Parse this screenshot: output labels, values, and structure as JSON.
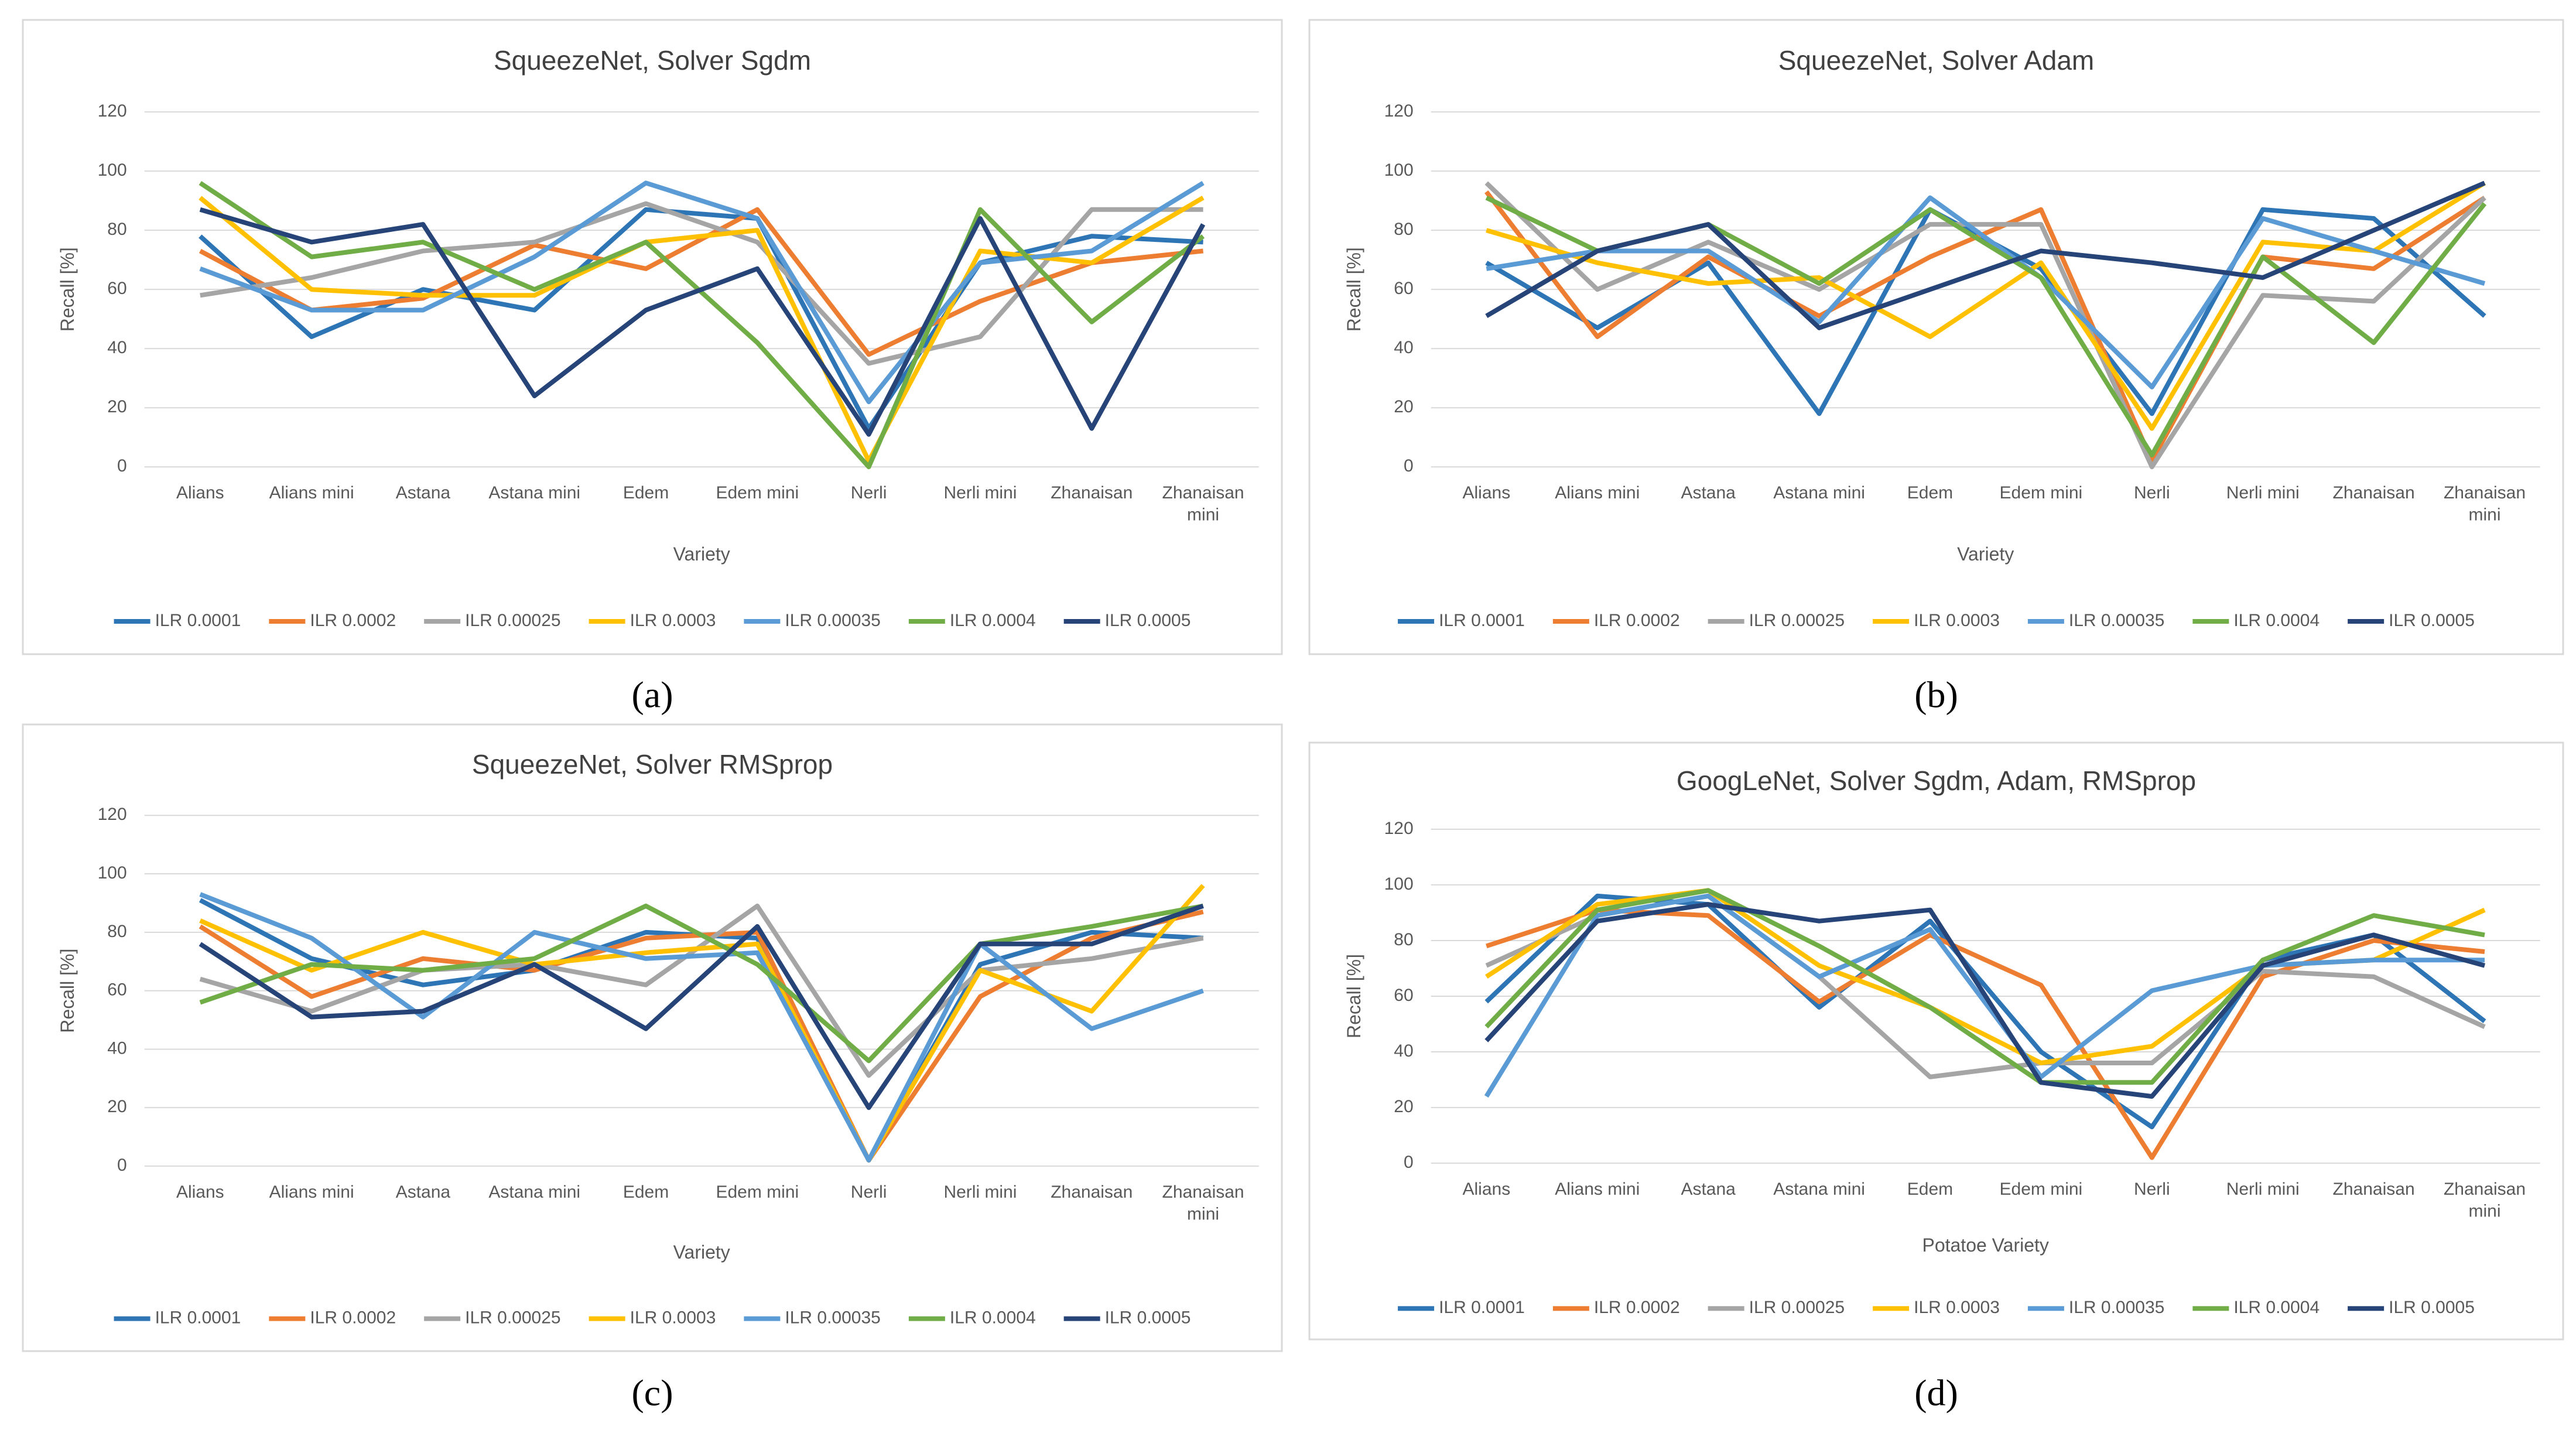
{
  "chart_data": [
    {
      "type": "line",
      "title": "SqueezeNet, Solver Sgdm",
      "panel": "(a)",
      "x_label": "Variety",
      "y_label": "Recall [%]",
      "categories": [
        "Alians",
        "Alians mini",
        "Astana",
        "Astana mini",
        "Edem",
        "Edem mini",
        "Nerli",
        "Nerli mini",
        "Zhanaisan",
        "Zhanaisan mini"
      ],
      "ylim": [
        0,
        120
      ],
      "yticks": [
        0,
        20,
        40,
        60,
        80,
        100,
        120
      ],
      "grid": true,
      "legend": "bottom",
      "series": [
        {
          "name": "ILR 0.0001",
          "color": "#2e75b6",
          "values": [
            78,
            44,
            60,
            53,
            87,
            84,
            13,
            69,
            78,
            76
          ]
        },
        {
          "name": "ILR 0.0002",
          "color": "#ed7d31",
          "values": [
            73,
            53,
            57,
            75,
            67,
            87,
            38,
            56,
            69,
            73
          ]
        },
        {
          "name": "ILR 0.00025",
          "color": "#a5a5a5",
          "values": [
            58,
            64,
            73,
            76,
            89,
            76,
            35,
            44,
            87,
            87
          ]
        },
        {
          "name": "ILR 0.0003",
          "color": "#ffc000",
          "values": [
            91,
            60,
            58,
            58,
            76,
            80,
            2,
            73,
            69,
            91
          ]
        },
        {
          "name": "ILR 0.00035",
          "color": "#5b9bd5",
          "values": [
            67,
            53,
            53,
            71,
            96,
            84,
            22,
            69,
            73,
            96
          ]
        },
        {
          "name": "ILR 0.0004",
          "color": "#70ad47",
          "values": [
            96,
            71,
            76,
            60,
            76,
            42,
            0,
            87,
            49,
            78
          ]
        },
        {
          "name": "ILR 0.0005",
          "color": "#264478",
          "values": [
            87,
            76,
            82,
            24,
            53,
            67,
            11,
            84,
            13,
            82
          ]
        }
      ]
    },
    {
      "type": "line",
      "title": "SqueezeNet, Solver Adam",
      "panel": "(b)",
      "x_label": "Variety",
      "y_label": "Recall [%]",
      "categories": [
        "Alians",
        "Alians mini",
        "Astana",
        "Astana mini",
        "Edem",
        "Edem mini",
        "Nerli",
        "Nerli mini",
        "Zhanaisan",
        "Zhanaisan mini"
      ],
      "ylim": [
        0,
        120
      ],
      "yticks": [
        0,
        20,
        40,
        60,
        80,
        100,
        120
      ],
      "grid": true,
      "legend": "bottom",
      "series": [
        {
          "name": "ILR 0.0001",
          "color": "#2e75b6",
          "values": [
            69,
            47,
            69,
            18,
            87,
            67,
            18,
            87,
            84,
            51
          ]
        },
        {
          "name": "ILR 0.0002",
          "color": "#ed7d31",
          "values": [
            93,
            44,
            71,
            51,
            71,
            87,
            2,
            71,
            67,
            91
          ]
        },
        {
          "name": "ILR 0.00025",
          "color": "#a5a5a5",
          "values": [
            96,
            60,
            76,
            60,
            82,
            82,
            0,
            58,
            56,
            91
          ]
        },
        {
          "name": "ILR 0.0003",
          "color": "#ffc000",
          "values": [
            80,
            69,
            62,
            64,
            44,
            69,
            13,
            76,
            73,
            96
          ]
        },
        {
          "name": "ILR 0.00035",
          "color": "#5b9bd5",
          "values": [
            67,
            73,
            73,
            49,
            91,
            64,
            27,
            84,
            73,
            62
          ]
        },
        {
          "name": "ILR 0.0004",
          "color": "#70ad47",
          "values": [
            91,
            73,
            82,
            62,
            87,
            64,
            4,
            71,
            42,
            89
          ]
        },
        {
          "name": "ILR 0.0005",
          "color": "#264478",
          "values": [
            51,
            73,
            82,
            47,
            60,
            73,
            69,
            64,
            80,
            96
          ]
        }
      ]
    },
    {
      "type": "line",
      "title": "SqueezeNet, Solver RMSprop",
      "panel": "(c)",
      "x_label": "Variety",
      "y_label": "Recall [%]",
      "categories": [
        "Alians",
        "Alians mini",
        "Astana",
        "Astana mini",
        "Edem",
        "Edem mini",
        "Nerli",
        "Nerli mini",
        "Zhanaisan",
        "Zhanaisan mini"
      ],
      "ylim": [
        0,
        120
      ],
      "yticks": [
        0,
        20,
        40,
        60,
        80,
        100,
        120
      ],
      "grid": true,
      "legend": "bottom",
      "series": [
        {
          "name": "ILR 0.0001",
          "color": "#2e75b6",
          "values": [
            91,
            71,
            62,
            67,
            80,
            78,
            2,
            69,
            80,
            78
          ]
        },
        {
          "name": "ILR 0.0002",
          "color": "#ed7d31",
          "values": [
            82,
            58,
            71,
            67,
            78,
            80,
            2,
            58,
            78,
            87
          ]
        },
        {
          "name": "ILR 0.00025",
          "color": "#a5a5a5",
          "values": [
            64,
            53,
            67,
            69,
            62,
            89,
            31,
            67,
            71,
            78
          ]
        },
        {
          "name": "ILR 0.0003",
          "color": "#ffc000",
          "values": [
            84,
            67,
            80,
            69,
            73,
            76,
            2,
            67,
            53,
            96
          ]
        },
        {
          "name": "ILR 0.00035",
          "color": "#5b9bd5",
          "values": [
            93,
            78,
            51,
            80,
            71,
            73,
            2,
            76,
            47,
            60
          ]
        },
        {
          "name": "ILR 0.0004",
          "color": "#70ad47",
          "values": [
            56,
            69,
            67,
            71,
            89,
            69,
            36,
            76,
            82,
            89
          ]
        },
        {
          "name": "ILR 0.0005",
          "color": "#264478",
          "values": [
            76,
            51,
            53,
            69,
            47,
            82,
            20,
            76,
            76,
            89
          ]
        }
      ]
    },
    {
      "type": "line",
      "title": "GoogLeNet, Solver Sgdm, Adam, RMSprop",
      "panel": "(d)",
      "x_label": "Potatoe Variety",
      "y_label": "Recall [%]",
      "categories": [
        "Alians",
        "Alians mini",
        "Astana",
        "Astana mini",
        "Edem",
        "Edem mini",
        "Nerli",
        "Nerli mini",
        "Zhanaisan",
        "Zhanaisan mini"
      ],
      "ylim": [
        0,
        120
      ],
      "yticks": [
        0,
        20,
        40,
        60,
        80,
        100,
        120
      ],
      "grid": true,
      "legend": "bottom",
      "series": [
        {
          "name": "ILR 0.0001",
          "color": "#2e75b6",
          "values": [
            58,
            96,
            93,
            56,
            87,
            40,
            13,
            73,
            82,
            51
          ]
        },
        {
          "name": "ILR 0.0002",
          "color": "#ed7d31",
          "values": [
            78,
            91,
            89,
            58,
            82,
            64,
            2,
            67,
            80,
            76
          ]
        },
        {
          "name": "ILR 0.00025",
          "color": "#a5a5a5",
          "values": [
            71,
            89,
            96,
            67,
            31,
            36,
            36,
            69,
            67,
            49
          ]
        },
        {
          "name": "ILR 0.0003",
          "color": "#ffc000",
          "values": [
            67,
            93,
            98,
            71,
            56,
            36,
            42,
            71,
            73,
            91
          ]
        },
        {
          "name": "ILR 0.00035",
          "color": "#5b9bd5",
          "values": [
            24,
            89,
            96,
            67,
            84,
            31,
            62,
            71,
            73,
            73
          ]
        },
        {
          "name": "ILR 0.0004",
          "color": "#70ad47",
          "values": [
            49,
            91,
            98,
            78,
            56,
            29,
            29,
            73,
            89,
            82
          ]
        },
        {
          "name": "ILR 0.0005",
          "color": "#264478",
          "values": [
            44,
            87,
            93,
            87,
            91,
            29,
            24,
            71,
            82,
            71
          ]
        }
      ]
    }
  ]
}
